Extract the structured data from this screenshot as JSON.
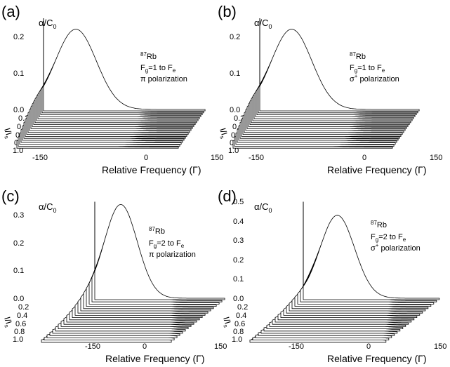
{
  "chart_data": [
    {
      "panel_label": "(a)",
      "type": "line",
      "ylabel_main": "α/C",
      "ylabel_sub": "0",
      "xlabel": "Relative Frequency (Γ)",
      "zlabel_main": "I/I",
      "zlabel_sub": "s",
      "xlim": [
        -150,
        150
      ],
      "xticks": [
        "-150",
        "0",
        "150"
      ],
      "ylim": [
        0,
        0.25
      ],
      "yticks": [
        "0.0",
        "0.1",
        "0.2"
      ],
      "zticks": [
        "0.2",
        "0.4",
        "0.6",
        "0.8",
        "1.0"
      ],
      "annotation": {
        "isotope_mass": "87",
        "element": "Rb",
        "transition_pre": "F",
        "transition_g": "g",
        "transition_mid": "=1 to F",
        "transition_e": "e",
        "polarization_symbol": "π",
        "polarization_text": " polarization"
      },
      "series_count": 20,
      "intensity_range": [
        0.05,
        1.0
      ],
      "front_peak": {
        "x": -90,
        "y": 0.22
      },
      "back_peak": {
        "x": -90,
        "y": 0.03
      }
    },
    {
      "panel_label": "(b)",
      "type": "line",
      "ylabel_main": "α/C",
      "ylabel_sub": "0",
      "xlabel": "Relative Frequency (Γ)",
      "zlabel_main": "I/I",
      "zlabel_sub": "s",
      "xlim": [
        -150,
        150
      ],
      "xticks": [
        "-150",
        "0",
        "150"
      ],
      "ylim": [
        0,
        0.25
      ],
      "yticks": [
        "0.0",
        "0.1",
        "0.2"
      ],
      "zticks": [
        "0.2",
        "0.4",
        "0.6",
        "0.8",
        "1.0"
      ],
      "annotation": {
        "isotope_mass": "87",
        "element": "Rb",
        "transition_pre": "F",
        "transition_g": "g",
        "transition_mid": "=1 to F",
        "transition_e": "e",
        "polarization_symbol": "σ",
        "polarization_sup": "+",
        "polarization_text": " polarization"
      },
      "series_count": 20,
      "intensity_range": [
        0.05,
        1.0
      ],
      "front_peak": {
        "x": -90,
        "y": 0.22
      },
      "back_peak": {
        "x": -90,
        "y": 0.03
      }
    },
    {
      "panel_label": "(c)",
      "type": "line",
      "ylabel_main": "α/C",
      "ylabel_sub": "0",
      "xlabel": "Relative Frequency (Γ)",
      "zlabel_main": "I/I",
      "zlabel_sub": "s",
      "xlim": [
        -150,
        150
      ],
      "xticks": [
        "-150",
        "0",
        "150"
      ],
      "ylim": [
        0,
        0.35
      ],
      "yticks": [
        "0.0",
        "0.1",
        "0.2",
        "0.3"
      ],
      "zticks": [
        "0.2",
        "0.4",
        "0.6",
        "0.8",
        "1.0"
      ],
      "annotation": {
        "isotope_mass": "87",
        "element": "Rb",
        "transition_pre": "F",
        "transition_g": "g",
        "transition_mid": "=2 to F",
        "transition_e": "e",
        "polarization_symbol": "π",
        "polarization_text": " polarization"
      },
      "series_count": 20,
      "intensity_range": [
        0.05,
        1.0
      ],
      "front_peak": {
        "x": -90,
        "y": 0.34
      },
      "back_peak": {
        "x": -5,
        "y": 0.13
      }
    },
    {
      "panel_label": "(d)",
      "type": "line",
      "ylabel_main": "α/C",
      "ylabel_sub": "0",
      "xlabel": "Relative Frequency (Γ)",
      "zlabel_main": "I/I",
      "zlabel_sub": "s",
      "xlim": [
        -150,
        150
      ],
      "xticks": [
        "-150",
        "0",
        "150"
      ],
      "ylim": [
        0,
        0.5
      ],
      "yticks": [
        "0.0",
        "0.1",
        "0.2",
        "0.3",
        "0.4",
        "0.5"
      ],
      "zticks": [
        "0.2",
        "0.4",
        "0.6",
        "0.8",
        "1.0"
      ],
      "annotation": {
        "isotope_mass": "87",
        "element": "Rb",
        "transition_pre": "F",
        "transition_g": "g",
        "transition_mid": "=2 to F",
        "transition_e": "e",
        "polarization_symbol": "σ",
        "polarization_sup": "+",
        "polarization_text": " polarization"
      },
      "series_count": 20,
      "intensity_range": [
        0.05,
        1.0
      ],
      "front_peak": {
        "x": -75,
        "y": 0.43
      },
      "back_peak": {
        "x": -5,
        "y": 0.16
      }
    }
  ]
}
